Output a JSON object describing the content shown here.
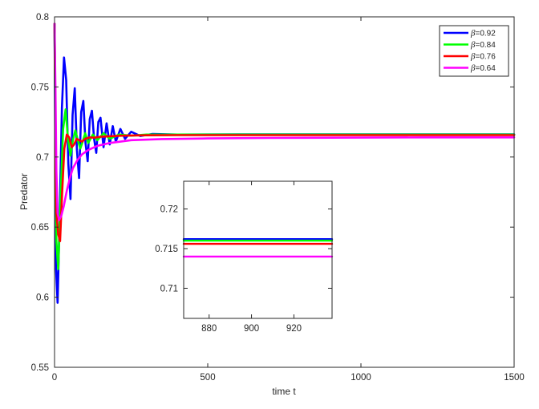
{
  "chart_data": [
    {
      "type": "line",
      "xlabel": "time t",
      "ylabel": "Predator",
      "xlim": [
        0,
        1500
      ],
      "ylim": [
        0.55,
        0.8
      ],
      "xticks": [
        "0",
        "500",
        "1000",
        "1500"
      ],
      "yticks": [
        "0.55",
        "0.6",
        "0.65",
        "0.7",
        "0.75",
        "0.8"
      ],
      "grid": false,
      "legend_position": "top-right",
      "series": [
        {
          "name": "β=0.92",
          "legend_symbol": "β",
          "legend_value": "=0.92",
          "color": "#0000ff",
          "x": [
            0,
            5,
            10,
            17,
            24,
            31,
            38,
            45,
            52,
            59,
            66,
            73,
            80,
            87,
            94,
            101,
            108,
            115,
            122,
            129,
            136,
            143,
            150,
            160,
            170,
            180,
            190,
            200,
            215,
            230,
            250,
            280,
            320,
            400,
            600,
            900,
            1200,
            1500
          ],
          "y": [
            0.795,
            0.62,
            0.596,
            0.66,
            0.735,
            0.771,
            0.755,
            0.695,
            0.67,
            0.73,
            0.749,
            0.705,
            0.685,
            0.732,
            0.74,
            0.71,
            0.697,
            0.727,
            0.733,
            0.713,
            0.703,
            0.725,
            0.728,
            0.707,
            0.724,
            0.709,
            0.722,
            0.711,
            0.72,
            0.713,
            0.718,
            0.715,
            0.7165,
            0.716,
            0.7162,
            0.7162,
            0.7162,
            0.7162
          ]
        },
        {
          "name": "β=0.84",
          "legend_symbol": "β",
          "legend_value": "=0.84",
          "color": "#00ff00",
          "x": [
            0,
            6,
            12,
            20,
            28,
            36,
            44,
            52,
            60,
            68,
            76,
            84,
            92,
            100,
            110,
            125,
            140,
            160,
            180,
            210,
            250,
            300,
            400,
            600,
            900,
            1200,
            1500
          ],
          "y": [
            0.795,
            0.64,
            0.62,
            0.672,
            0.72,
            0.734,
            0.713,
            0.701,
            0.712,
            0.719,
            0.712,
            0.706,
            0.711,
            0.717,
            0.71,
            0.716,
            0.712,
            0.717,
            0.713,
            0.716,
            0.7152,
            0.716,
            0.716,
            0.716,
            0.716,
            0.716,
            0.716
          ]
        },
        {
          "name": "β=0.76",
          "legend_symbol": "β",
          "legend_value": "=0.76",
          "color": "#ff0000",
          "x": [
            0,
            6,
            12,
            18,
            25,
            32,
            40,
            48,
            56,
            64,
            72,
            80,
            90,
            100,
            115,
            130,
            150,
            180,
            220,
            300,
            400,
            600,
            900,
            1200,
            1500
          ],
          "y": [
            0.795,
            0.66,
            0.645,
            0.64,
            0.675,
            0.706,
            0.716,
            0.714,
            0.707,
            0.709,
            0.713,
            0.712,
            0.711,
            0.713,
            0.714,
            0.7138,
            0.7145,
            0.7148,
            0.7152,
            0.7155,
            0.7156,
            0.7156,
            0.7156,
            0.7156,
            0.7156
          ]
        },
        {
          "name": "β=0.64",
          "legend_symbol": "β",
          "legend_value": "=0.64",
          "color": "#ff00ff",
          "x": [
            0,
            3,
            6,
            10,
            15,
            22,
            30,
            40,
            50,
            60,
            75,
            90,
            110,
            140,
            180,
            250,
            350,
            500,
            700,
            900,
            1200,
            1500
          ],
          "y": [
            0.795,
            0.75,
            0.69,
            0.66,
            0.655,
            0.658,
            0.665,
            0.676,
            0.685,
            0.692,
            0.698,
            0.702,
            0.705,
            0.708,
            0.71,
            0.712,
            0.7128,
            0.7133,
            0.7136,
            0.7138,
            0.714,
            0.714
          ]
        }
      ]
    },
    {
      "type": "line",
      "inset": true,
      "xlim": [
        868,
        938
      ],
      "ylim": [
        0.7062,
        0.7235
      ],
      "xticks": [
        "880",
        "900",
        "920"
      ],
      "yticks": [
        "0.71",
        "0.715",
        "0.72"
      ],
      "grid": false,
      "series": [
        {
          "color": "#0000ff",
          "x": [
            868,
            938
          ],
          "y": [
            0.7162,
            0.7162
          ]
        },
        {
          "color": "#00ff00",
          "x": [
            868,
            938
          ],
          "y": [
            0.716,
            0.716
          ]
        },
        {
          "color": "#ff0000",
          "x": [
            868,
            938
          ],
          "y": [
            0.7156,
            0.7156
          ]
        },
        {
          "color": "#ff00ff",
          "x": [
            868,
            938
          ],
          "y": [
            0.714,
            0.714
          ]
        }
      ]
    }
  ]
}
